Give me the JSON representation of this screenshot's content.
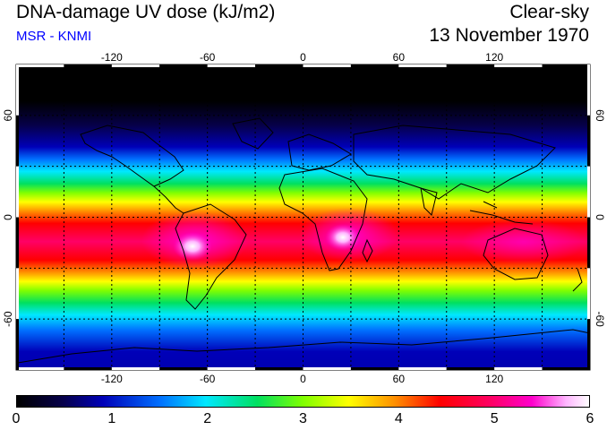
{
  "header": {
    "title": "DNA-damage UV dose (kJ/m2)",
    "subtitle": "MSR - KNMI",
    "condition": "Clear-sky",
    "date": "13 November 1970"
  },
  "colors": {
    "subtitle": "#0000ff",
    "scale": [
      "#000000",
      "#06004a",
      "#0000b8",
      "#0070ff",
      "#00e8ff",
      "#00e060",
      "#80ff00",
      "#ffff00",
      "#ff9000",
      "#ff0000",
      "#ff0066",
      "#ff00cc",
      "#ffb6ff",
      "#ffffff"
    ]
  },
  "map": {
    "lon_ticks": [
      "-120",
      "-60",
      "0",
      "60",
      "120"
    ],
    "lat_ticks": [
      "60",
      "0",
      "-60"
    ],
    "lon_range": [
      -180,
      180
    ],
    "lat_range": [
      -90,
      90
    ],
    "grid_step_deg": 30
  },
  "colorbar": {
    "min": 0,
    "max": 6,
    "ticks": [
      "0",
      "1",
      "2",
      "3",
      "4",
      "5",
      "6"
    ]
  }
}
